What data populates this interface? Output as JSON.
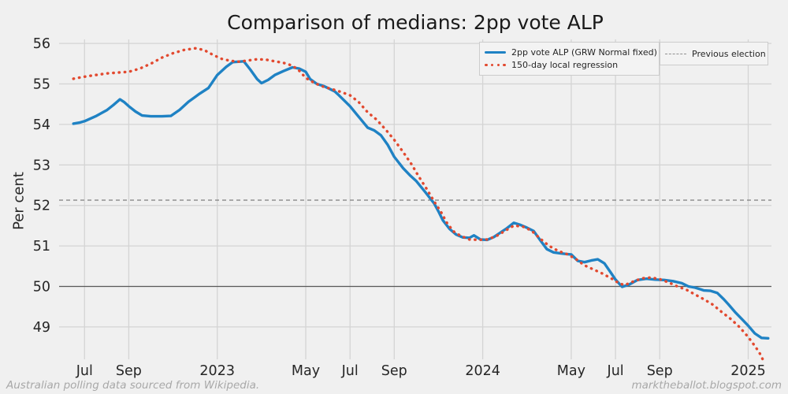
{
  "header": {
    "title": "Comparison of medians: 2pp vote ALP"
  },
  "axes": {
    "y_label": "Per cent",
    "y_ticks": [
      56,
      55,
      54,
      53,
      52,
      51,
      50,
      49
    ],
    "x_ticks": [
      {
        "m": 1,
        "label": "Jul"
      },
      {
        "m": 3,
        "label": "Sep"
      },
      {
        "m": 7,
        "label": "2023"
      },
      {
        "m": 11,
        "label": "May"
      },
      {
        "m": 13,
        "label": "Jul"
      },
      {
        "m": 15,
        "label": "Sep"
      },
      {
        "m": 19,
        "label": "2024"
      },
      {
        "m": 23,
        "label": "May"
      },
      {
        "m": 25,
        "label": "Jul"
      },
      {
        "m": 27,
        "label": "Sep"
      },
      {
        "m": 31,
        "label": "2025"
      }
    ]
  },
  "legend": {
    "series": [
      {
        "label": "2pp vote ALP (GRW Normal fixed)",
        "color": "#1f82c4",
        "style": "solid"
      },
      {
        "label": "150-day local regression",
        "color": "#e2492f",
        "style": "dotted"
      }
    ],
    "reference": {
      "label": "Previous election",
      "color": "#8f8f8f",
      "style": "dashed"
    }
  },
  "footer": {
    "left": "Australian polling data sourced from Wikipedia.",
    "right": "marktheballot.blogspot.com"
  },
  "colors": {
    "background": "#f0f0f0",
    "grid": "#d4d4d4",
    "text": "#262626",
    "footer_text": "#a8a8a8",
    "alp_line": "#1f82c4",
    "regression_line": "#e2492f",
    "previous_election_line": "#8f8f8f",
    "fifty_percent_line": "#595959"
  },
  "chart_data": {
    "type": "line",
    "title": "Comparison of medians: 2pp vote ALP",
    "ylabel": "Per cent",
    "x_unit": "months since 2022-06-01",
    "xlim": [
      -0.15,
      32.05
    ],
    "ylim": [
      48.2,
      56.1
    ],
    "grid": true,
    "legend_position": "upper right",
    "reference_lines": [
      {
        "name": "previous-election",
        "label": "Previous election",
        "value": 52.13,
        "style": "dashed"
      },
      {
        "name": "fifty-percent",
        "label": "50 per cent",
        "value": 50.0,
        "style": "solid"
      }
    ],
    "series": [
      {
        "name": "2pp vote ALP (GRW Normal fixed)",
        "style": "solid",
        "color": "#1f82c4",
        "points": [
          [
            0.5,
            54.02
          ],
          [
            0.8,
            54.05
          ],
          [
            1,
            54.08
          ],
          [
            1.5,
            54.2
          ],
          [
            2,
            54.35
          ],
          [
            2.3,
            54.48
          ],
          [
            2.6,
            54.62
          ],
          [
            2.8,
            54.55
          ],
          [
            3,
            54.45
          ],
          [
            3.3,
            54.32
          ],
          [
            3.6,
            54.22
          ],
          [
            4,
            54.2
          ],
          [
            4.5,
            54.2
          ],
          [
            4.9,
            54.21
          ],
          [
            5.3,
            54.36
          ],
          [
            5.7,
            54.56
          ],
          [
            6,
            54.68
          ],
          [
            6.2,
            54.76
          ],
          [
            6.6,
            54.9
          ],
          [
            7,
            55.22
          ],
          [
            7.4,
            55.42
          ],
          [
            7.7,
            55.54
          ],
          [
            8.2,
            55.56
          ],
          [
            8.5,
            55.35
          ],
          [
            8.8,
            55.12
          ],
          [
            9,
            55.02
          ],
          [
            9.3,
            55.1
          ],
          [
            9.6,
            55.22
          ],
          [
            10,
            55.32
          ],
          [
            10.4,
            55.41
          ],
          [
            10.7,
            55.38
          ],
          [
            11,
            55.3
          ],
          [
            11.2,
            55.12
          ],
          [
            11.5,
            55.0
          ],
          [
            11.8,
            54.95
          ],
          [
            12,
            54.9
          ],
          [
            12.3,
            54.82
          ],
          [
            12.5,
            54.72
          ],
          [
            13,
            54.45
          ],
          [
            13.3,
            54.25
          ],
          [
            13.5,
            54.12
          ],
          [
            13.8,
            53.92
          ],
          [
            14.1,
            53.85
          ],
          [
            14.4,
            53.73
          ],
          [
            14.7,
            53.5
          ],
          [
            15,
            53.2
          ],
          [
            15.4,
            52.92
          ],
          [
            15.7,
            52.75
          ],
          [
            16,
            52.6
          ],
          [
            16.4,
            52.33
          ],
          [
            16.8,
            52.05
          ],
          [
            17,
            51.85
          ],
          [
            17.2,
            51.63
          ],
          [
            17.5,
            51.42
          ],
          [
            17.8,
            51.28
          ],
          [
            18.1,
            51.21
          ],
          [
            18.4,
            51.2
          ],
          [
            18.6,
            51.26
          ],
          [
            18.9,
            51.16
          ],
          [
            19.2,
            51.15
          ],
          [
            19.5,
            51.22
          ],
          [
            19.8,
            51.33
          ],
          [
            20.1,
            51.44
          ],
          [
            20.4,
            51.57
          ],
          [
            20.7,
            51.52
          ],
          [
            21,
            51.45
          ],
          [
            21.3,
            51.37
          ],
          [
            21.6,
            51.14
          ],
          [
            21.9,
            50.92
          ],
          [
            22.2,
            50.84
          ],
          [
            22.5,
            50.82
          ],
          [
            22.8,
            50.8
          ],
          [
            23,
            50.79
          ],
          [
            23.3,
            50.63
          ],
          [
            23.6,
            50.6
          ],
          [
            23.9,
            50.64
          ],
          [
            24.2,
            50.67
          ],
          [
            24.5,
            50.57
          ],
          [
            24.8,
            50.33
          ],
          [
            25,
            50.17
          ],
          [
            25.3,
            49.99
          ],
          [
            25.6,
            50.04
          ],
          [
            26,
            50.16
          ],
          [
            26.4,
            50.19
          ],
          [
            26.8,
            50.17
          ],
          [
            27.2,
            50.16
          ],
          [
            27.6,
            50.13
          ],
          [
            28,
            50.08
          ],
          [
            28.3,
            50.0
          ],
          [
            28.6,
            49.97
          ],
          [
            29,
            49.9
          ],
          [
            29.3,
            49.89
          ],
          [
            29.6,
            49.84
          ],
          [
            29.9,
            49.68
          ],
          [
            30.1,
            49.56
          ],
          [
            30.4,
            49.37
          ],
          [
            30.7,
            49.2
          ],
          [
            31,
            49.03
          ],
          [
            31.3,
            48.84
          ],
          [
            31.6,
            48.73
          ],
          [
            31.9,
            48.72
          ]
        ]
      },
      {
        "name": "150-day local regression",
        "style": "dotted",
        "color": "#e2492f",
        "points": [
          [
            0.5,
            55.13
          ],
          [
            1,
            55.18
          ],
          [
            1.5,
            55.22
          ],
          [
            2,
            55.26
          ],
          [
            2.5,
            55.28
          ],
          [
            3,
            55.3
          ],
          [
            3.5,
            55.38
          ],
          [
            4,
            55.5
          ],
          [
            4.5,
            55.65
          ],
          [
            5,
            55.76
          ],
          [
            5.5,
            55.84
          ],
          [
            6,
            55.88
          ],
          [
            6.4,
            55.84
          ],
          [
            6.8,
            55.72
          ],
          [
            7.2,
            55.62
          ],
          [
            7.6,
            55.57
          ],
          [
            8,
            55.55
          ],
          [
            8.4,
            55.58
          ],
          [
            8.8,
            55.61
          ],
          [
            9.2,
            55.6
          ],
          [
            9.6,
            55.56
          ],
          [
            10,
            55.52
          ],
          [
            10.4,
            55.45
          ],
          [
            10.7,
            55.33
          ],
          [
            11,
            55.15
          ],
          [
            11.4,
            55.02
          ],
          [
            11.8,
            54.93
          ],
          [
            12.2,
            54.87
          ],
          [
            12.6,
            54.8
          ],
          [
            13,
            54.72
          ],
          [
            13.4,
            54.55
          ],
          [
            13.8,
            54.3
          ],
          [
            14.2,
            54.12
          ],
          [
            14.6,
            53.88
          ],
          [
            15,
            53.62
          ],
          [
            15.4,
            53.32
          ],
          [
            15.8,
            53.0
          ],
          [
            16.1,
            52.72
          ],
          [
            16.5,
            52.38
          ],
          [
            16.8,
            52.1
          ],
          [
            17.1,
            51.85
          ],
          [
            17.4,
            51.55
          ],
          [
            17.7,
            51.35
          ],
          [
            18,
            51.25
          ],
          [
            18.4,
            51.16
          ],
          [
            18.8,
            51.15
          ],
          [
            19.2,
            51.16
          ],
          [
            19.6,
            51.24
          ],
          [
            20,
            51.37
          ],
          [
            20.4,
            51.5
          ],
          [
            20.8,
            51.48
          ],
          [
            21.2,
            51.38
          ],
          [
            21.6,
            51.18
          ],
          [
            22,
            51.0
          ],
          [
            22.4,
            50.88
          ],
          [
            22.8,
            50.8
          ],
          [
            23.2,
            50.68
          ],
          [
            23.6,
            50.52
          ],
          [
            24,
            50.42
          ],
          [
            24.4,
            50.32
          ],
          [
            24.8,
            50.2
          ],
          [
            25.1,
            50.1
          ],
          [
            25.4,
            50.03
          ],
          [
            25.8,
            50.12
          ],
          [
            26.2,
            50.2
          ],
          [
            26.6,
            50.22
          ],
          [
            27,
            50.18
          ],
          [
            27.4,
            50.1
          ],
          [
            27.8,
            50.0
          ],
          [
            28.2,
            49.92
          ],
          [
            28.6,
            49.8
          ],
          [
            29,
            49.68
          ],
          [
            29.4,
            49.55
          ],
          [
            29.8,
            49.37
          ],
          [
            30.2,
            49.2
          ],
          [
            30.6,
            49.0
          ],
          [
            31,
            48.75
          ],
          [
            31.3,
            48.53
          ],
          [
            31.5,
            48.37
          ],
          [
            31.7,
            48.15
          ]
        ]
      }
    ]
  }
}
